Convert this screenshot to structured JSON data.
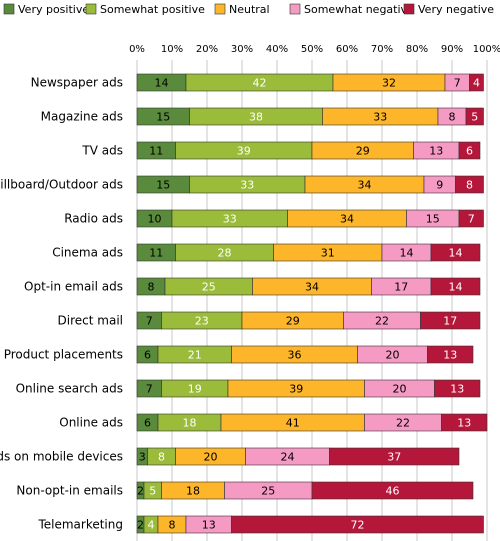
{
  "chart_data": {
    "type": "bar",
    "orientation": "horizontal",
    "stacked": true,
    "percent": true,
    "xlim": [
      0,
      100
    ],
    "x_ticks": [
      "0%",
      "10%",
      "20%",
      "30%",
      "40%",
      "50%",
      "60%",
      "70%",
      "80%",
      "90%",
      "100%"
    ],
    "grid": true,
    "legend_position": "top",
    "categories": [
      "Newspaper ads",
      "Magazine ads",
      "TV ads",
      "Billboard/Outdoor ads",
      "Radio ads",
      "Cinema ads",
      "Opt-in email ads",
      "Direct mail",
      "Product placements",
      "Online search ads",
      "Online ads",
      "Ads on mobile devices",
      "Non-opt-in emails",
      "Telemarketing"
    ],
    "series": [
      {
        "name": "Very positive",
        "color": "#5a8a3c",
        "label_color": "#000000",
        "values": [
          14,
          15,
          11,
          15,
          10,
          11,
          8,
          7,
          6,
          7,
          6,
          3,
          2,
          2
        ]
      },
      {
        "name": "Somewhat positive",
        "color": "#9bbb3b",
        "label_color": "#ffffff",
        "values": [
          42,
          38,
          39,
          33,
          33,
          28,
          25,
          23,
          21,
          19,
          18,
          8,
          5,
          4
        ]
      },
      {
        "name": "Neutral",
        "color": "#fdb52a",
        "label_color": "#000000",
        "values": [
          32,
          33,
          29,
          34,
          34,
          31,
          34,
          29,
          36,
          39,
          41,
          20,
          18,
          8
        ]
      },
      {
        "name": "Somewhat negative",
        "color": "#f59ac3",
        "label_color": "#000000",
        "values": [
          7,
          8,
          13,
          9,
          15,
          14,
          17,
          22,
          20,
          20,
          22,
          24,
          25,
          13
        ]
      },
      {
        "name": "Very negative",
        "color": "#b5173b",
        "label_color": "#ffffff",
        "values": [
          4,
          5,
          6,
          8,
          7,
          14,
          14,
          17,
          13,
          13,
          13,
          37,
          46,
          72
        ]
      }
    ]
  }
}
